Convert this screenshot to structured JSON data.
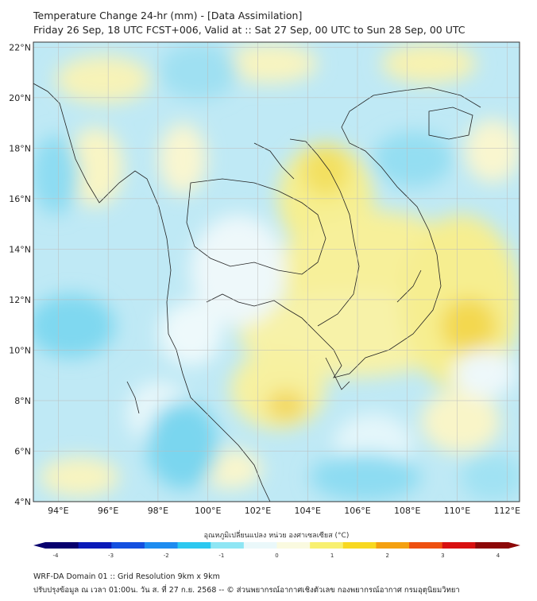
{
  "title": {
    "line1": "Temperature Change 24-hr (mm) - [Data Assimilation]",
    "line2": "Friday 26 Sep, 18 UTC FCST+006, Valid at :: Sat 27 Sep, 00 UTC to Sun 28 Sep, 00 UTC"
  },
  "map": {
    "lon_ticks": [
      "94°E",
      "96°E",
      "98°E",
      "100°E",
      "102°E",
      "104°E",
      "106°E",
      "108°E",
      "110°E",
      "112°E"
    ],
    "lat_ticks": [
      "22°N",
      "20°N",
      "18°N",
      "16°N",
      "14°N",
      "12°N",
      "10°N",
      "8°N",
      "6°N",
      "4°N"
    ],
    "lon_values": [
      94,
      96,
      98,
      100,
      102,
      104,
      106,
      108,
      110,
      112
    ],
    "lat_values": [
      22,
      20,
      18,
      16,
      14,
      12,
      10,
      8,
      6,
      4
    ],
    "lon_range": [
      93,
      112.5
    ],
    "lat_range": [
      4,
      22.2
    ],
    "base_color": "#bfe9f5"
  },
  "colorbar": {
    "label": "อุณหภูมิเปลี่ยนแปลง หน่วย องศาเซลเซียส (°C)",
    "ticks": [
      "-4",
      "-3",
      "-2",
      "-1",
      "0",
      "1",
      "2",
      "3",
      "4"
    ],
    "tick_values": [
      -4,
      -3,
      -2,
      -1,
      0,
      1,
      2,
      3,
      4
    ],
    "range": [
      -4,
      4
    ],
    "colors": [
      "#08006e",
      "#0a1ab8",
      "#1450e0",
      "#1e8cf0",
      "#2cc8f0",
      "#8ee6f4",
      "#eaf8fa",
      "#fafae0",
      "#f8f070",
      "#f8d820",
      "#f4a010",
      "#ee5010",
      "#d81010",
      "#8c0808"
    ]
  },
  "footer": {
    "line1": "WRF-DA Domain 01 :: Grid Resolution 9km x 9km",
    "line2": "ปรับปรุงข้อมูล ณ เวลา 01:00น. วัน ส. ที่ 27 ก.ย. 2568 -- © ส่วนพยากรณ์อากาศเชิงตัวเลข กองพยากรณ์อากาศ กรมอุตุนิยมวิทยา"
  }
}
